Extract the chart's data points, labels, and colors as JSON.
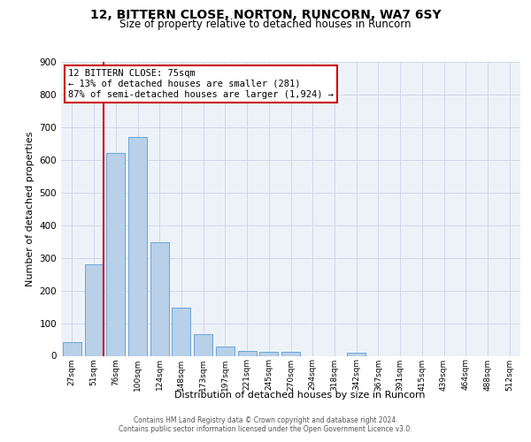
{
  "title": "12, BITTERN CLOSE, NORTON, RUNCORN, WA7 6SY",
  "subtitle": "Size of property relative to detached houses in Runcorn",
  "xlabel": "Distribution of detached houses by size in Runcorn",
  "ylabel": "Number of detached properties",
  "footer_line1": "Contains HM Land Registry data © Crown copyright and database right 2024.",
  "footer_line2": "Contains public sector information licensed under the Open Government Licence v3.0.",
  "bar_labels": [
    "27sqm",
    "51sqm",
    "76sqm",
    "100sqm",
    "124sqm",
    "148sqm",
    "173sqm",
    "197sqm",
    "221sqm",
    "245sqm",
    "270sqm",
    "294sqm",
    "318sqm",
    "342sqm",
    "367sqm",
    "391sqm",
    "415sqm",
    "439sqm",
    "464sqm",
    "488sqm",
    "512sqm"
  ],
  "bar_values": [
    42,
    280,
    622,
    670,
    348,
    148,
    65,
    29,
    15,
    12,
    12,
    0,
    0,
    10,
    0,
    0,
    0,
    0,
    0,
    0,
    0
  ],
  "bar_color": "#b8d0e8",
  "bar_edge_color": "#5b9bd5",
  "annotation_text": "12 BITTERN CLOSE: 75sqm\n← 13% of detached houses are smaller (281)\n87% of semi-detached houses are larger (1,924) →",
  "annotation_box_color": "#ffffff",
  "annotation_box_edge": "#cc0000",
  "vline_color": "#cc0000",
  "ylim_max": 900,
  "yticks": [
    0,
    100,
    200,
    300,
    400,
    500,
    600,
    700,
    800,
    900
  ],
  "grid_color": "#d0d8e8",
  "bg_color": "#edf2f9",
  "title_fontsize": 10,
  "subtitle_fontsize": 8.5,
  "ylabel_fontsize": 8,
  "xlabel_fontsize": 8,
  "tick_fontsize": 6.5,
  "ytick_fontsize": 7.5,
  "footer_fontsize": 5.5,
  "ann_fontsize": 7.5
}
